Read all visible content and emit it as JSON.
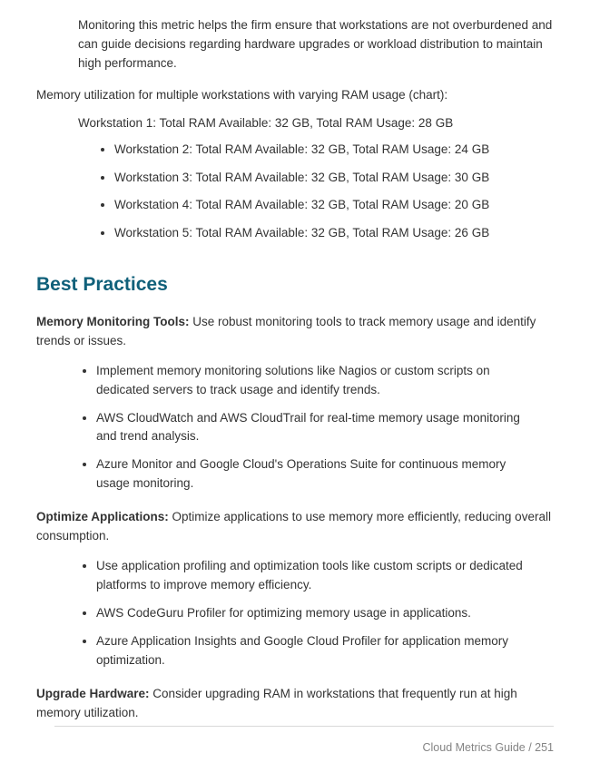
{
  "intro": "Monitoring this metric helps the firm ensure that workstations are not overburdened and can guide decisions regarding hardware upgrades or workload distribution to maintain high performance.",
  "chart_label": "Memory utilization for multiple workstations with varying RAM usage (chart):",
  "workstation1": "Workstation 1: Total RAM Available: 32 GB, Total RAM Usage: 28 GB",
  "workstations_rest": [
    "Workstation 2: Total RAM Available: 32 GB, Total RAM Usage: 24 GB",
    "Workstation 3: Total RAM Available: 32 GB, Total RAM Usage: 30 GB",
    "Workstation 4: Total RAM Available: 32 GB, Total RAM Usage: 20 GB",
    "Workstation 5: Total RAM Available: 32 GB, Total RAM Usage: 26 GB"
  ],
  "section_heading": "Best Practices",
  "practices": [
    {
      "title": "Memory Monitoring Tools:",
      "body": " Use robust monitoring tools to track memory usage and identify trends or issues.",
      "items": [
        "Implement memory monitoring solutions like Nagios or custom scripts on dedicated servers to track usage and identify trends.",
        "AWS CloudWatch and AWS CloudTrail for real-time memory usage monitoring and trend analysis.",
        "Azure Monitor and Google Cloud's Operations Suite for continuous memory usage monitoring."
      ]
    },
    {
      "title": "Optimize Applications:",
      "body": " Optimize applications to use memory more efficiently, reducing overall consumption.",
      "items": [
        "Use application profiling and optimization tools like custom scripts or dedicated platforms to improve memory efficiency.",
        "AWS CodeGuru Profiler for optimizing memory usage in applications.",
        "Azure Application Insights and Google Cloud Profiler for application memory optimization."
      ]
    },
    {
      "title": "Upgrade Hardware:",
      "body": " Consider upgrading RAM in workstations that frequently run at high memory utilization.",
      "items": []
    }
  ],
  "footer": "Cloud Metrics Guide / 251",
  "colors": {
    "heading": "#10607a",
    "text": "#333333",
    "footer_text": "#848484",
    "divider": "#d8d8d8",
    "background": "#ffffff"
  },
  "typography": {
    "body_fontsize_pt": 10,
    "heading_fontsize_pt": 16,
    "footer_fontsize_pt": 9.5,
    "font_family": "Segoe UI"
  }
}
